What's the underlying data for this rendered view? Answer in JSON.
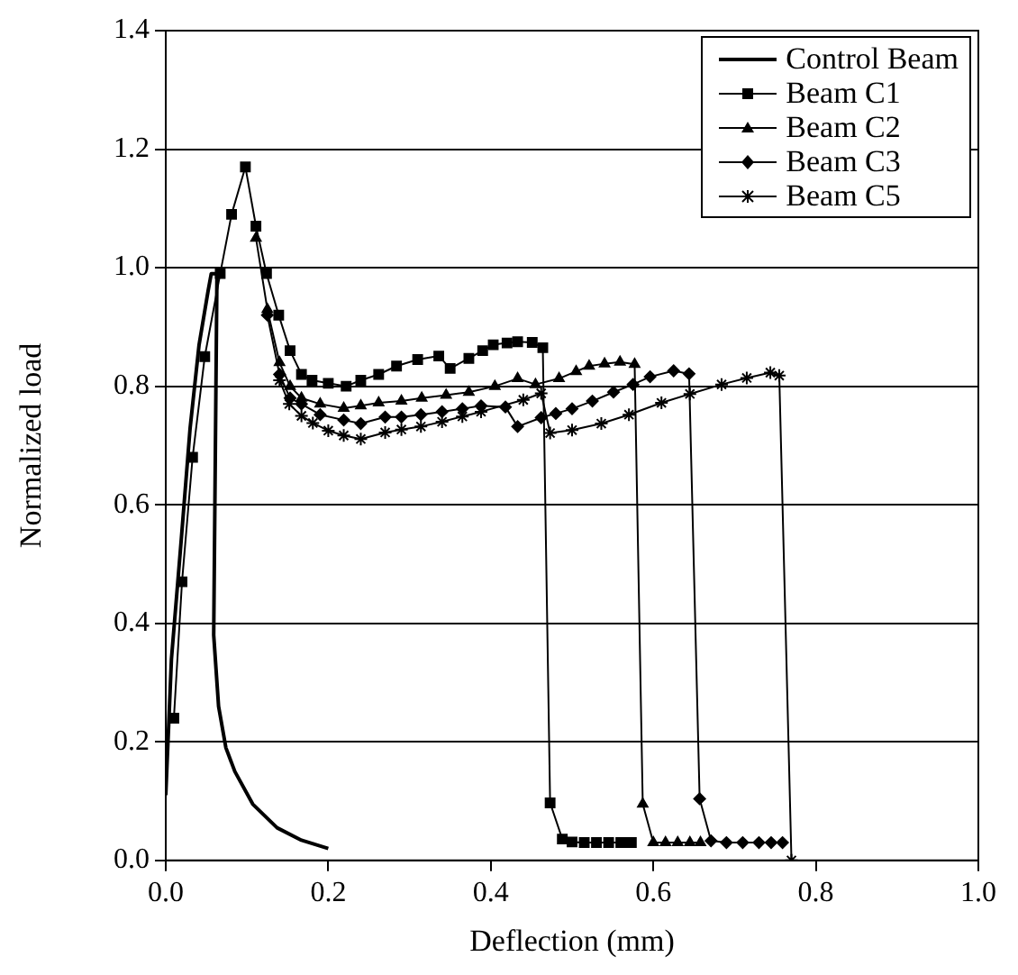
{
  "chart_data": {
    "type": "line",
    "xlabel": "Deflection (mm)",
    "ylabel": "Normalized load",
    "xlim": [
      0,
      1
    ],
    "ylim": [
      0,
      1.4
    ],
    "xticks": [
      {
        "value": 0,
        "label": "0.0"
      },
      {
        "value": 0.2,
        "label": "0.2"
      },
      {
        "value": 0.4,
        "label": "0.4"
      },
      {
        "value": 0.6,
        "label": "0.6"
      },
      {
        "value": 0.8,
        "label": "0.8"
      },
      {
        "value": 1,
        "label": "1.0"
      }
    ],
    "yticks": [
      {
        "value": 0,
        "label": "0.0"
      },
      {
        "value": 0.2,
        "label": "0.2"
      },
      {
        "value": 0.4,
        "label": "0.4"
      },
      {
        "value": 0.6,
        "label": "0.6"
      },
      {
        "value": 0.8,
        "label": "0.8"
      },
      {
        "value": 1,
        "label": "1.0"
      },
      {
        "value": 1.2,
        "label": "1.2"
      },
      {
        "value": 1.4,
        "label": "1.4"
      }
    ],
    "grid": "y",
    "legend": "top right",
    "series": [
      {
        "name": "Control Beam",
        "color": "#000000",
        "marker": "none",
        "x": [
          0,
          0.007,
          0.019,
          0.03,
          0.041,
          0.052,
          0.056,
          0.063,
          0.059,
          0.065,
          0.074,
          0.085,
          0.107,
          0.137,
          0.167,
          0.2
        ],
        "values": [
          0.11,
          0.34,
          0.54,
          0.73,
          0.87,
          0.96,
          0.99,
          0.99,
          0.38,
          0.26,
          0.19,
          0.15,
          0.095,
          0.055,
          0.034,
          0.02
        ]
      },
      {
        "name": "Beam C1",
        "color": "#000000",
        "marker": "square",
        "x": [
          0.01,
          0.02,
          0.033,
          0.048,
          0.067,
          0.081,
          0.098,
          0.111,
          0.124,
          0.139,
          0.153,
          0.167,
          0.18,
          0.2,
          0.222,
          0.24,
          0.262,
          0.284,
          0.31,
          0.336,
          0.35,
          0.373,
          0.39,
          0.403,
          0.42,
          0.433,
          0.451,
          0.464,
          0.473,
          0.488,
          0.5,
          0.515,
          0.53,
          0.545,
          0.56,
          0.573
        ],
        "values": [
          0.24,
          0.47,
          0.68,
          0.85,
          0.99,
          1.09,
          1.17,
          1.07,
          0.99,
          0.92,
          0.86,
          0.82,
          0.81,
          0.805,
          0.8,
          0.81,
          0.82,
          0.834,
          0.845,
          0.851,
          0.83,
          0.847,
          0.86,
          0.87,
          0.873,
          0.875,
          0.874,
          0.865,
          0.097,
          0.036,
          0.031,
          0.03,
          0.03,
          0.03,
          0.03,
          0.03
        ]
      },
      {
        "name": "Beam C2",
        "color": "#000000",
        "marker": "triangle",
        "x": [
          0.111,
          0.125,
          0.14,
          0.153,
          0.167,
          0.19,
          0.219,
          0.24,
          0.262,
          0.29,
          0.315,
          0.345,
          0.373,
          0.405,
          0.433,
          0.455,
          0.484,
          0.505,
          0.521,
          0.54,
          0.559,
          0.577,
          0.587,
          0.6,
          0.615,
          0.63,
          0.645,
          0.658
        ],
        "values": [
          1.05,
          0.93,
          0.84,
          0.8,
          0.78,
          0.77,
          0.763,
          0.767,
          0.772,
          0.775,
          0.78,
          0.785,
          0.79,
          0.8,
          0.813,
          0.803,
          0.813,
          0.825,
          0.834,
          0.838,
          0.841,
          0.837,
          0.095,
          0.03,
          0.03,
          0.03,
          0.03,
          0.03
        ]
      },
      {
        "name": "Beam C3",
        "color": "#000000",
        "marker": "diamond",
        "x": [
          0.125,
          0.14,
          0.153,
          0.167,
          0.19,
          0.219,
          0.24,
          0.27,
          0.29,
          0.314,
          0.34,
          0.365,
          0.388,
          0.418,
          0.433,
          0.462,
          0.48,
          0.5,
          0.525,
          0.551,
          0.575,
          0.596,
          0.625,
          0.644,
          0.657,
          0.671,
          0.69,
          0.71,
          0.73,
          0.745,
          0.759
        ],
        "values": [
          0.92,
          0.82,
          0.78,
          0.77,
          0.752,
          0.743,
          0.737,
          0.748,
          0.748,
          0.752,
          0.757,
          0.762,
          0.767,
          0.765,
          0.732,
          0.747,
          0.754,
          0.762,
          0.775,
          0.79,
          0.803,
          0.816,
          0.826,
          0.821,
          0.104,
          0.033,
          0.03,
          0.03,
          0.03,
          0.03,
          0.03
        ]
      },
      {
        "name": "Beam C5",
        "color": "#000000",
        "marker": "cross",
        "x": [
          0.14,
          0.152,
          0.167,
          0.181,
          0.2,
          0.219,
          0.24,
          0.27,
          0.29,
          0.314,
          0.34,
          0.365,
          0.388,
          0.44,
          0.462,
          0.473,
          0.5,
          0.536,
          0.57,
          0.61,
          0.645,
          0.684,
          0.715,
          0.744,
          0.755,
          0.77
        ],
        "values": [
          0.81,
          0.77,
          0.75,
          0.738,
          0.725,
          0.717,
          0.711,
          0.722,
          0.727,
          0.732,
          0.74,
          0.749,
          0.757,
          0.777,
          0.788,
          0.721,
          0.726,
          0.737,
          0.752,
          0.772,
          0.787,
          0.803,
          0.814,
          0.823,
          0.818,
          0
        ]
      }
    ]
  }
}
